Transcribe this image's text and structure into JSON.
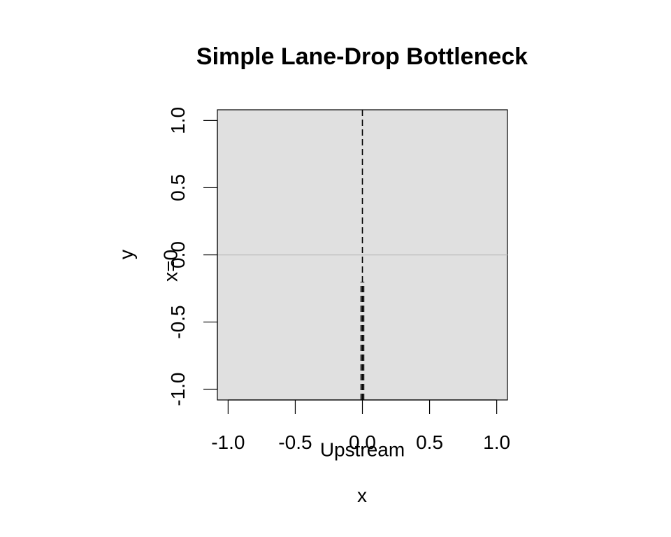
{
  "chart_data": {
    "type": "line",
    "title": "Simple Lane-Drop Bottleneck",
    "xlabel": "x",
    "ylabel": "y",
    "xlim": [
      -1.08,
      1.08
    ],
    "ylim": [
      -1.08,
      1.08
    ],
    "x_ticks": [
      -1.0,
      -0.5,
      0.0,
      0.5,
      1.0
    ],
    "x_tick_labels": [
      "-1.0",
      "-0.5",
      "0.0",
      "0.5",
      "1.0"
    ],
    "y_ticks": [
      -1.0,
      -0.5,
      0.0,
      0.5,
      1.0
    ],
    "y_tick_labels": [
      "-1.0",
      "-0.5",
      "0.0",
      "0.5",
      "1.0"
    ],
    "grid": false,
    "legend": "none",
    "background_color": "#e0e0e0",
    "reference_line": {
      "y": 0.0,
      "color": "#c0c0c0"
    },
    "series": [
      {
        "style": "dashed",
        "color": "#000000",
        "x": [
          0.0,
          0.0
        ],
        "y": [
          -1.08,
          1.08
        ]
      },
      {
        "style": "dashed",
        "color": "#000000",
        "x": [
          -0.01,
          -0.01
        ],
        "y": [
          -1.08,
          -0.2
        ]
      },
      {
        "style": "dashed",
        "color": "#000000",
        "x": [
          0.01,
          0.01
        ],
        "y": [
          -1.08,
          -0.2
        ]
      }
    ],
    "annotations": [
      {
        "text": "Upstream",
        "x": 0.0,
        "y": -1.5,
        "rotation": 0
      },
      {
        "text": "x=0",
        "x": -1.38,
        "y": -0.08,
        "rotation": -90
      }
    ]
  }
}
